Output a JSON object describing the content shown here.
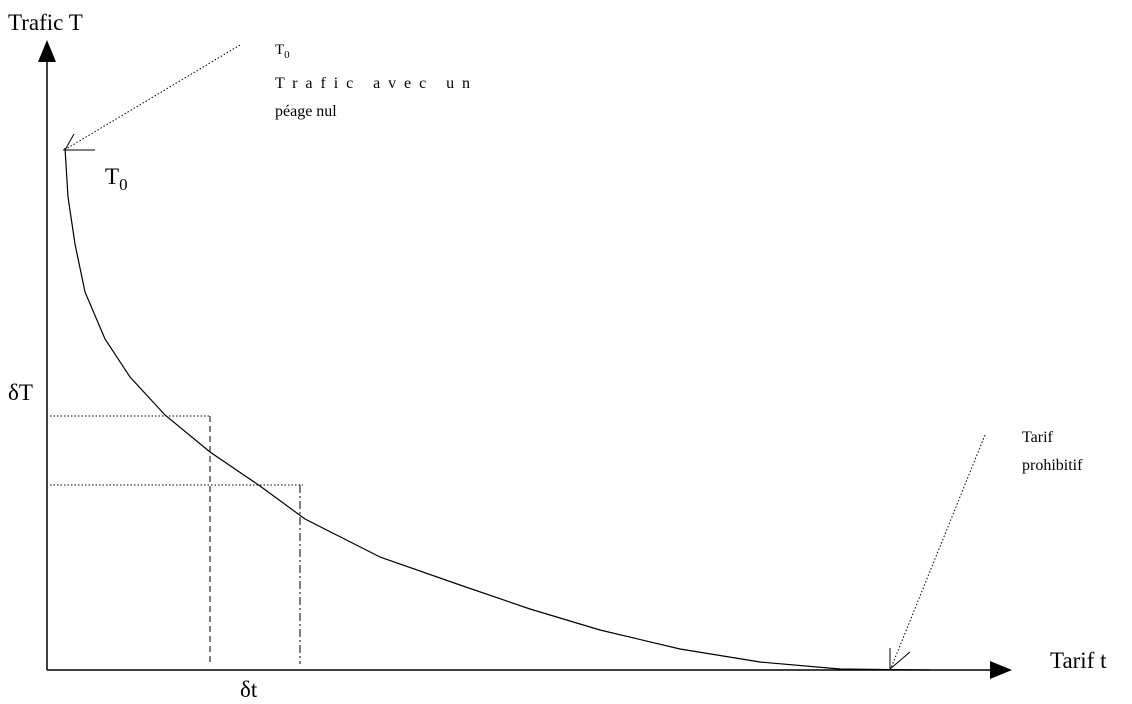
{
  "axes": {
    "y_label": "Trafic T",
    "x_label": "Tarif t",
    "y_mark": "δT",
    "x_mark": "δt"
  },
  "annotations": {
    "zero_toll": {
      "symbol": {
        "letter": "T",
        "subscript": "0"
      },
      "line1": "Trafic avec un",
      "line2": "péage nul"
    },
    "curve_start": {
      "letter": "T",
      "subscript": "0"
    },
    "prohibitive": {
      "line1": "Tarif",
      "line2": "prohibitif"
    }
  }
}
